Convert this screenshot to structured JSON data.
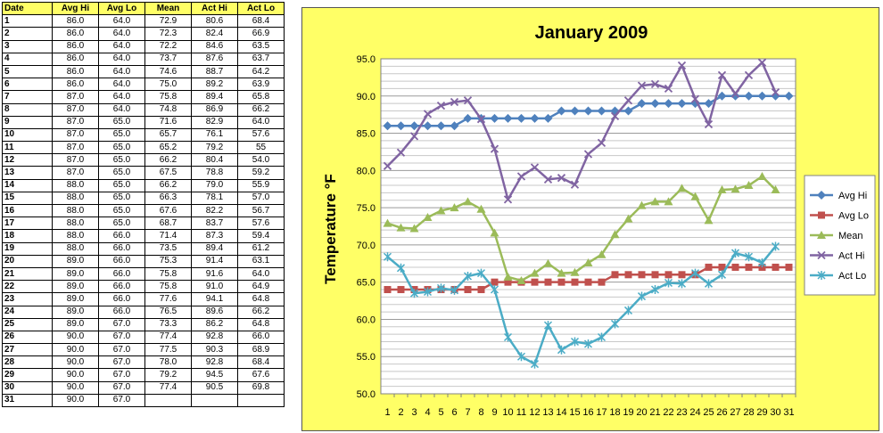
{
  "table": {
    "headers": [
      "Date",
      "Avg Hi",
      "Avg Lo",
      "Mean",
      "Act Hi",
      "Act Lo"
    ],
    "rows": [
      [
        "1",
        "86.0",
        "64.0",
        "72.9",
        "80.6",
        "68.4"
      ],
      [
        "2",
        "86.0",
        "64.0",
        "72.3",
        "82.4",
        "66.9"
      ],
      [
        "3",
        "86.0",
        "64.0",
        "72.2",
        "84.6",
        "63.5"
      ],
      [
        "4",
        "86.0",
        "64.0",
        "73.7",
        "87.6",
        "63.7"
      ],
      [
        "5",
        "86.0",
        "64.0",
        "74.6",
        "88.7",
        "64.2"
      ],
      [
        "6",
        "86.0",
        "64.0",
        "75.0",
        "89.2",
        "63.9"
      ],
      [
        "7",
        "87.0",
        "64.0",
        "75.8",
        "89.4",
        "65.8"
      ],
      [
        "8",
        "87.0",
        "64.0",
        "74.8",
        "86.9",
        "66.2"
      ],
      [
        "9",
        "87.0",
        "65.0",
        "71.6",
        "82.9",
        "64.0"
      ],
      [
        "10",
        "87.0",
        "65.0",
        "65.7",
        "76.1",
        "57.6"
      ],
      [
        "11",
        "87.0",
        "65.0",
        "65.2",
        "79.2",
        "55"
      ],
      [
        "12",
        "87.0",
        "65.0",
        "66.2",
        "80.4",
        "54.0"
      ],
      [
        "13",
        "87.0",
        "65.0",
        "67.5",
        "78.8",
        "59.2"
      ],
      [
        "14",
        "88.0",
        "65.0",
        "66.2",
        "79.0",
        "55.9"
      ],
      [
        "15",
        "88.0",
        "65.0",
        "66.3",
        "78.1",
        "57.0"
      ],
      [
        "16",
        "88.0",
        "65.0",
        "67.6",
        "82.2",
        "56.7"
      ],
      [
        "17",
        "88.0",
        "65.0",
        "68.7",
        "83.7",
        "57.6"
      ],
      [
        "18",
        "88.0",
        "66.0",
        "71.4",
        "87.3",
        "59.4"
      ],
      [
        "19",
        "88.0",
        "66.0",
        "73.5",
        "89.4",
        "61.2"
      ],
      [
        "20",
        "89.0",
        "66.0",
        "75.3",
        "91.4",
        "63.1"
      ],
      [
        "21",
        "89.0",
        "66.0",
        "75.8",
        "91.6",
        "64.0"
      ],
      [
        "22",
        "89.0",
        "66.0",
        "75.8",
        "91.0",
        "64.9"
      ],
      [
        "23",
        "89.0",
        "66.0",
        "77.6",
        "94.1",
        "64.8"
      ],
      [
        "24",
        "89.0",
        "66.0",
        "76.5",
        "89.6",
        "66.2"
      ],
      [
        "25",
        "89.0",
        "67.0",
        "73.3",
        "86.2",
        "64.8"
      ],
      [
        "26",
        "90.0",
        "67.0",
        "77.4",
        "92.8",
        "66.0"
      ],
      [
        "27",
        "90.0",
        "67.0",
        "77.5",
        "90.3",
        "68.9"
      ],
      [
        "28",
        "90.0",
        "67.0",
        "78.0",
        "92.8",
        "68.4"
      ],
      [
        "29",
        "90.0",
        "67.0",
        "79.2",
        "94.5",
        "67.6"
      ],
      [
        "30",
        "90.0",
        "67.0",
        "77.4",
        "90.5",
        "69.8"
      ],
      [
        "31",
        "90.0",
        "67.0",
        "",
        "",
        ""
      ]
    ]
  },
  "chart_data": {
    "type": "line",
    "title": "January 2009",
    "ylabel": "Temperature °F",
    "xlabel": "",
    "x": [
      1,
      2,
      3,
      4,
      5,
      6,
      7,
      8,
      9,
      10,
      11,
      12,
      13,
      14,
      15,
      16,
      17,
      18,
      19,
      20,
      21,
      22,
      23,
      24,
      25,
      26,
      27,
      28,
      29,
      30,
      31
    ],
    "ylim": [
      50.0,
      95.0
    ],
    "yticks": [
      "50.0",
      "55.0",
      "60.0",
      "65.0",
      "70.0",
      "75.0",
      "80.0",
      "85.0",
      "90.0",
      "95.0"
    ],
    "grid": true,
    "legend_position": "right",
    "series": [
      {
        "name": "Avg Hi",
        "color": "#4f81bd",
        "marker": "diamond",
        "values": [
          86,
          86,
          86,
          86,
          86,
          86,
          87,
          87,
          87,
          87,
          87,
          87,
          87,
          88,
          88,
          88,
          88,
          88,
          88,
          89,
          89,
          89,
          89,
          89,
          89,
          90,
          90,
          90,
          90,
          90,
          90
        ]
      },
      {
        "name": "Avg Lo",
        "color": "#c0504d",
        "marker": "square",
        "values": [
          64,
          64,
          64,
          64,
          64,
          64,
          64,
          64,
          65,
          65,
          65,
          65,
          65,
          65,
          65,
          65,
          65,
          66,
          66,
          66,
          66,
          66,
          66,
          66,
          67,
          67,
          67,
          67,
          67,
          67,
          67
        ]
      },
      {
        "name": "Mean",
        "color": "#9bbb59",
        "marker": "triangle",
        "values": [
          72.9,
          72.3,
          72.2,
          73.7,
          74.6,
          75.0,
          75.8,
          74.8,
          71.6,
          65.7,
          65.2,
          66.2,
          67.5,
          66.2,
          66.3,
          67.6,
          68.7,
          71.4,
          73.5,
          75.3,
          75.8,
          75.8,
          77.6,
          76.5,
          73.3,
          77.4,
          77.5,
          78.0,
          79.2,
          77.4,
          null
        ]
      },
      {
        "name": "Act Hi",
        "color": "#8064a2",
        "marker": "x",
        "values": [
          80.6,
          82.4,
          84.6,
          87.6,
          88.7,
          89.2,
          89.4,
          86.9,
          82.9,
          76.1,
          79.2,
          80.4,
          78.8,
          79.0,
          78.1,
          82.2,
          83.7,
          87.3,
          89.4,
          91.4,
          91.6,
          91.0,
          94.1,
          89.6,
          86.2,
          92.8,
          90.3,
          92.8,
          94.5,
          90.5,
          null
        ]
      },
      {
        "name": "Act Lo",
        "color": "#4bacc6",
        "marker": "star",
        "values": [
          68.4,
          66.9,
          63.5,
          63.7,
          64.2,
          63.9,
          65.8,
          66.2,
          64.0,
          57.6,
          55,
          54.0,
          59.2,
          55.9,
          57.0,
          56.7,
          57.6,
          59.4,
          61.2,
          63.1,
          64.0,
          64.9,
          64.8,
          66.2,
          64.8,
          66.0,
          68.9,
          68.4,
          67.6,
          69.8,
          null
        ]
      }
    ]
  }
}
